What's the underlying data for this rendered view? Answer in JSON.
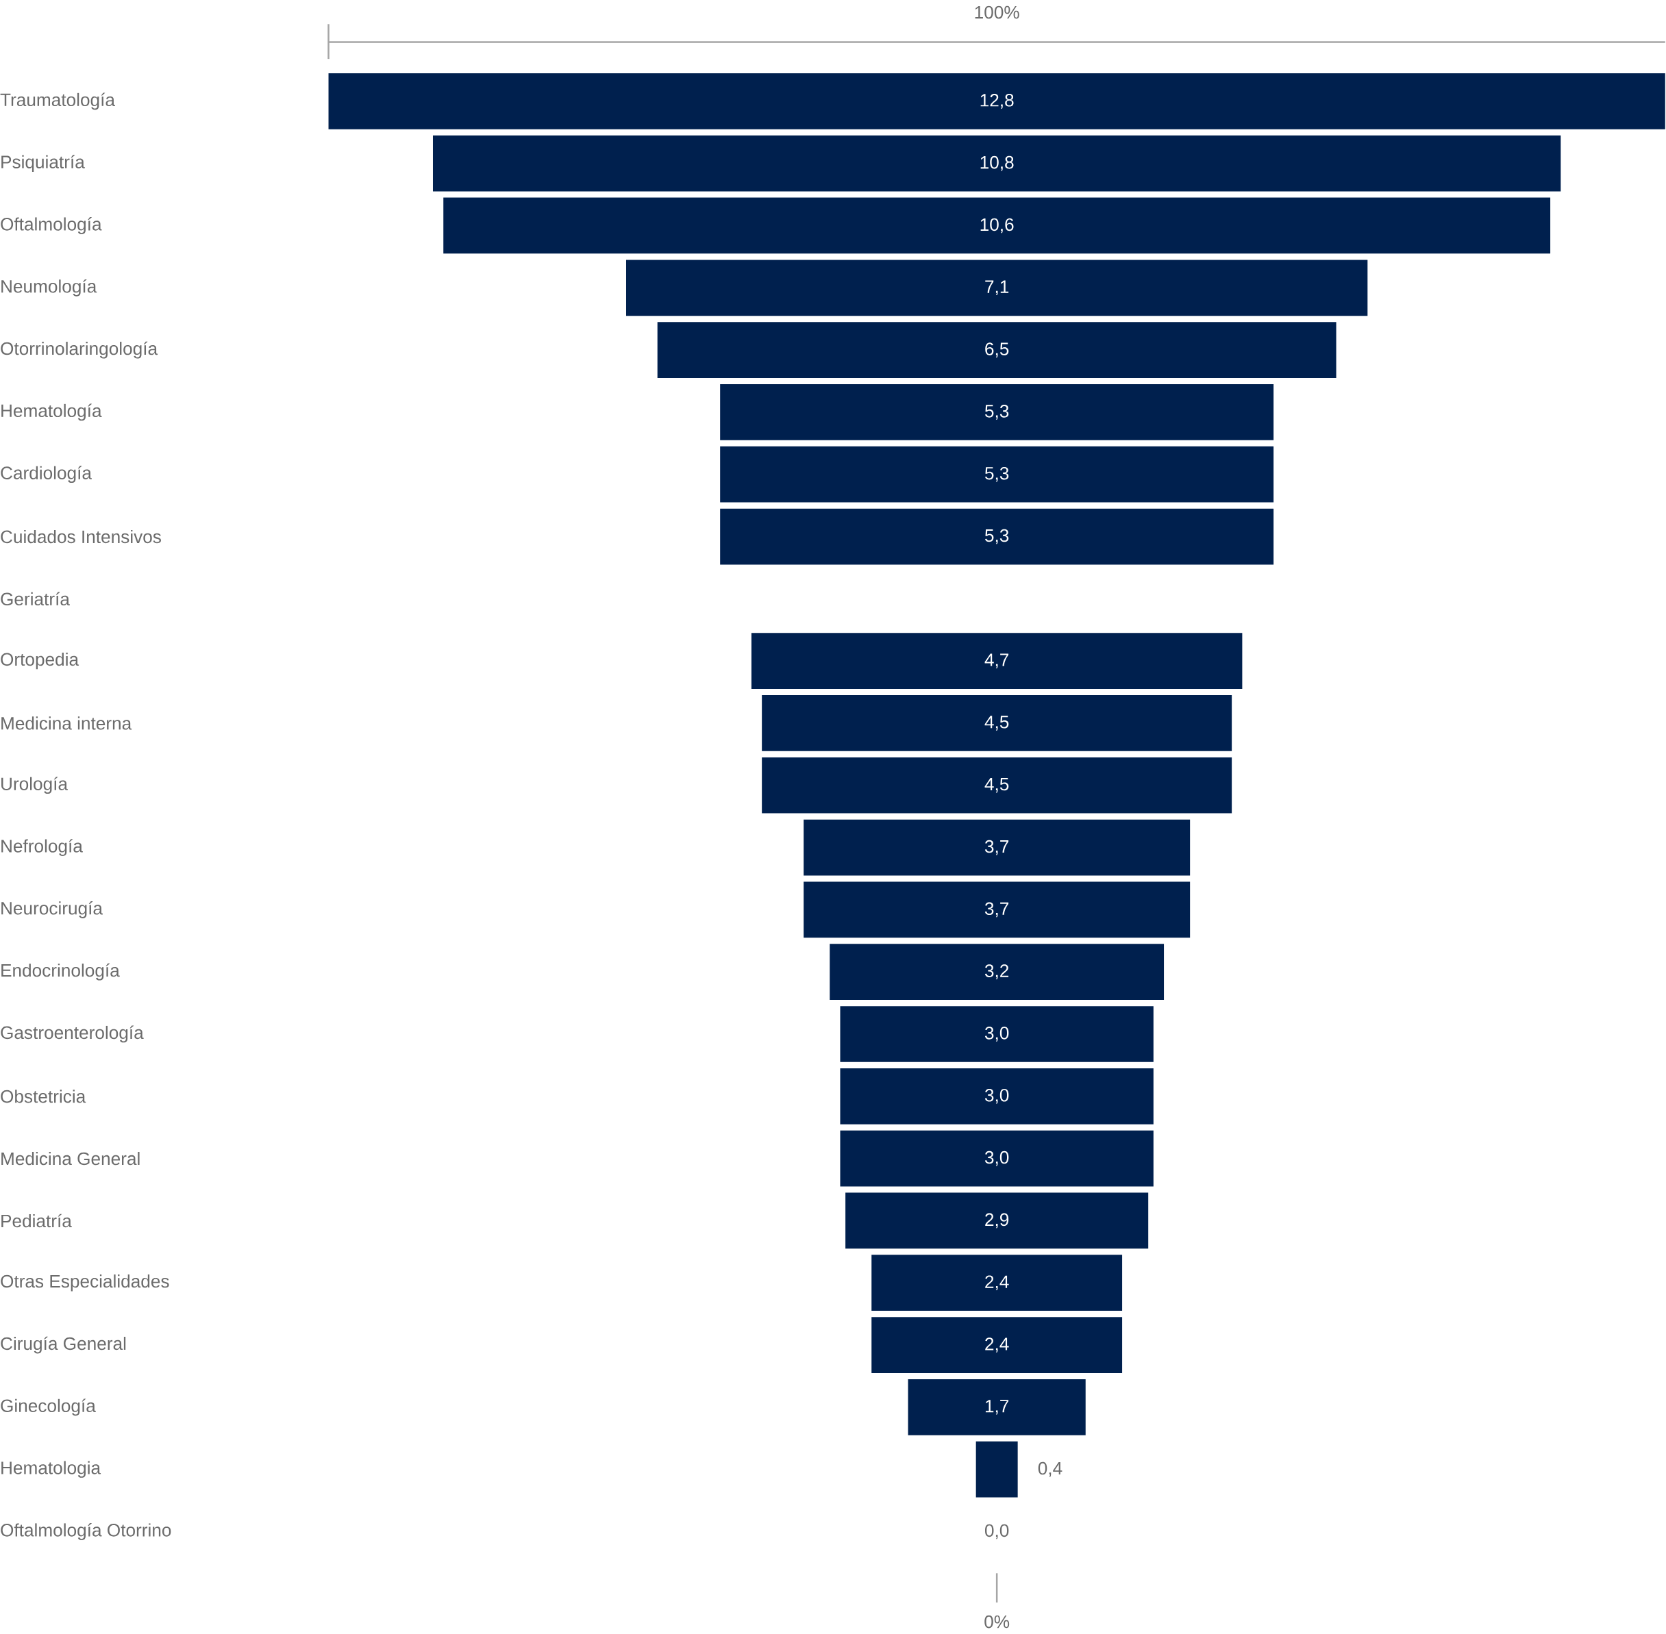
{
  "chart_data": {
    "type": "other",
    "categories": [
      "Traumatología",
      "Psiquiatría",
      "Oftalmología",
      "Neumología",
      "Otorrinolaringología",
      "Hematología",
      "Cardiología",
      "Cuidados Intensivos",
      "Geriatría",
      "Ortopedia",
      "Medicina interna",
      "Urología",
      "Nefrología",
      "Neurocirugía",
      "Endocrinología",
      "Gastroenterología",
      "Obstetricia",
      "Medicina General",
      "Pediatría",
      "Otras Especialidades",
      "Cirugía General",
      "Ginecología",
      "Hematologia",
      "Oftalmología Otorrino"
    ],
    "values": [
      12.8,
      10.8,
      10.6,
      7.1,
      6.5,
      5.3,
      5.3,
      5.3,
      null,
      4.7,
      4.5,
      4.5,
      3.7,
      3.7,
      3.2,
      3.0,
      3.0,
      3.0,
      2.9,
      2.4,
      2.4,
      1.7,
      0.4,
      0.0
    ],
    "value_labels": [
      "12,8",
      "10,8",
      "10,6",
      "7,1",
      "6,5",
      "5,3",
      "5,3",
      "5,3",
      null,
      "4,7",
      "4,5",
      "4,5",
      "3,7",
      "3,7",
      "3,2",
      "3,0",
      "3,0",
      "3,0",
      "2,9",
      "2,4",
      "2,4",
      "1,7",
      "0,4",
      "0,0"
    ],
    "color": "#00204e",
    "annotations": [
      "100%",
      "0%"
    ]
  }
}
